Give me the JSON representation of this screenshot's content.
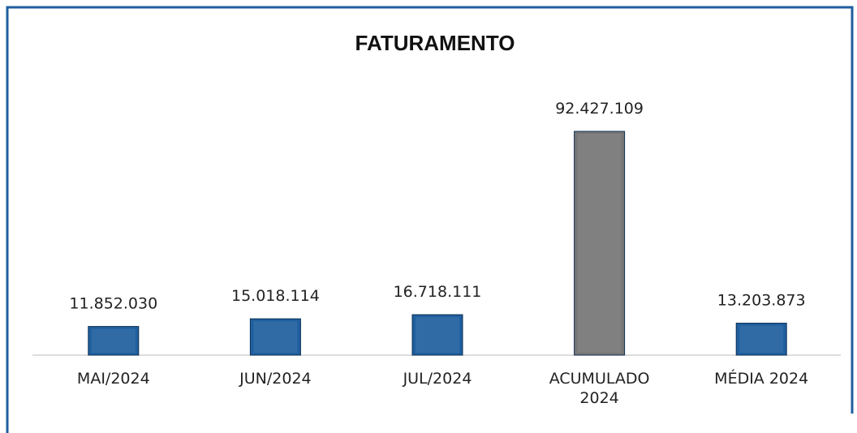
{
  "chart_data": {
    "type": "bar",
    "title": "FATURAMENTO",
    "categories": [
      "MAI/2024",
      "JUN/2024",
      "JUL/2024",
      "ACUMULADO 2024",
      "MÉDIA 2024"
    ],
    "values": [
      11852030,
      15018114,
      16718111,
      92427109,
      13203873
    ],
    "value_labels": [
      "11.852.030",
      "15.018.114",
      "16.718.111",
      "92.427.109",
      "13.203.873"
    ],
    "colors": [
      "#1f5f9f",
      "#1f5f9f",
      "#1f5f9f",
      "#767676",
      "#1f5f9f"
    ]
  }
}
